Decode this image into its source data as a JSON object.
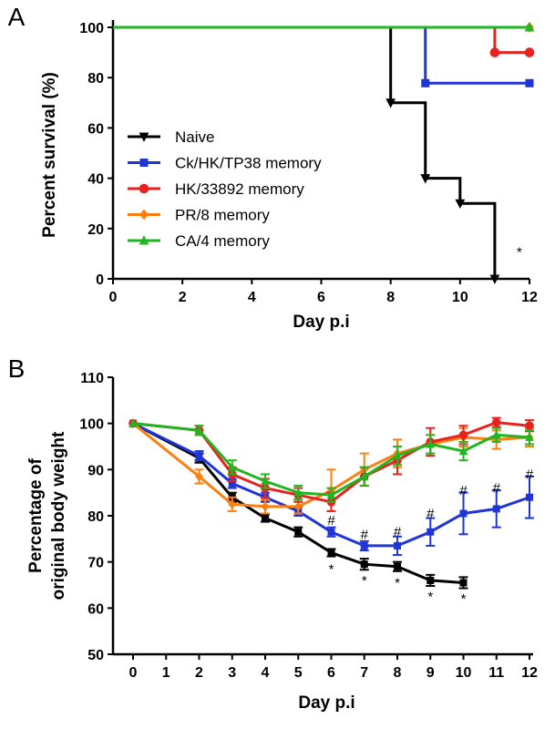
{
  "colors": {
    "naive": "#000000",
    "ck": "#1f35d6",
    "hk": "#e8221e",
    "pr": "#ff7f0e",
    "ca": "#22b522"
  },
  "chart_data": [
    {
      "type": "line",
      "panel_label": "A",
      "xlabel": "Day p.i",
      "ylabel": "Percent survival (%)",
      "xlim": [
        0,
        12
      ],
      "ylim": [
        0,
        100
      ],
      "x_ticks": [
        "0",
        "2",
        "4",
        "6",
        "8",
        "10",
        "12"
      ],
      "y_ticks": [
        "0",
        "20",
        "40",
        "60",
        "80",
        "100"
      ],
      "legend_position": "left",
      "step": true,
      "series": [
        {
          "name": "Naive",
          "key": "naive",
          "marker": "triangle-down",
          "x": [
            0,
            8,
            9,
            10,
            11
          ],
          "y": [
            100,
            70,
            40,
            30,
            0
          ]
        },
        {
          "name": "Ck/HK/TP38 memory",
          "key": "ck",
          "marker": "square",
          "x": [
            0,
            9,
            12
          ],
          "y": [
            100,
            77.8,
            77.8
          ]
        },
        {
          "name": "HK/33892 memory",
          "key": "hk",
          "marker": "circle",
          "x": [
            0,
            11,
            12
          ],
          "y": [
            100,
            90,
            90
          ]
        },
        {
          "name": "PR/8 memory",
          "key": "pr",
          "marker": "diamond",
          "x": [
            0,
            12
          ],
          "y": [
            100,
            100
          ]
        },
        {
          "name": "CA/4 memory",
          "key": "ca",
          "marker": "triangle-up",
          "x": [
            0,
            12
          ],
          "y": [
            100,
            100
          ]
        }
      ],
      "annotations": [
        {
          "text": "*",
          "x": 11.5,
          "y": 6
        }
      ]
    },
    {
      "type": "line",
      "panel_label": "B",
      "xlabel": "Day p.i",
      "ylabel_lines": [
        "Percentage of",
        "original body weight"
      ],
      "xlim": [
        0,
        12
      ],
      "ylim": [
        50,
        110
      ],
      "x_ticks": [
        "0",
        "1",
        "2",
        "3",
        "4",
        "5",
        "6",
        "7",
        "8",
        "9",
        "10",
        "11",
        "12"
      ],
      "y_ticks": [
        "50",
        "60",
        "70",
        "80",
        "90",
        "100",
        "110"
      ],
      "series": [
        {
          "name": "Naive",
          "key": "naive",
          "marker": "square",
          "x": [
            0,
            2,
            3,
            4,
            5,
            6,
            7,
            8,
            9,
            10
          ],
          "y": [
            100,
            92.5,
            84,
            79.5,
            76.5,
            72,
            69.5,
            69,
            66,
            65.5
          ],
          "err": [
            0,
            1,
            1,
            0.8,
            1,
            0.8,
            1.2,
            1,
            1.2,
            1.2
          ]
        },
        {
          "name": "Ck/HK/TP38 memory",
          "key": "ck",
          "marker": "square",
          "x": [
            0,
            2,
            3,
            4,
            5,
            6,
            7,
            8,
            9,
            10,
            11,
            12
          ],
          "y": [
            100,
            93,
            87,
            84,
            81,
            76.5,
            73.5,
            73.5,
            76.5,
            80.5,
            81.5,
            84
          ],
          "err": [
            0,
            1,
            1,
            1,
            1,
            1,
            1,
            2,
            3,
            4.5,
            4,
            4.5
          ]
        },
        {
          "name": "HK/33892 memory",
          "key": "hk",
          "marker": "circle",
          "x": [
            0,
            2,
            3,
            4,
            5,
            6,
            7,
            8,
            9,
            10,
            11,
            12
          ],
          "y": [
            100,
            98.5,
            89,
            86,
            84.5,
            83,
            88.5,
            92,
            96,
            97.5,
            100.2,
            99.5
          ],
          "err": [
            0,
            1,
            1.5,
            2,
            1.5,
            2,
            2,
            3,
            3,
            2,
            1,
            1.2
          ]
        },
        {
          "name": "PR/8 memory",
          "key": "pr",
          "marker": "diamond",
          "x": [
            0,
            2,
            3,
            4,
            5,
            6,
            7,
            8,
            9,
            10,
            11,
            12
          ],
          "y": [
            100,
            88.5,
            82.5,
            82,
            82,
            85.5,
            90,
            93.5,
            95.5,
            97,
            96.5,
            97
          ],
          "err": [
            0,
            1.5,
            1.5,
            1.5,
            1.5,
            4.5,
            3.5,
            3,
            2,
            2,
            2,
            2
          ]
        },
        {
          "name": "CA/4 memory",
          "key": "ca",
          "marker": "triangle-up",
          "x": [
            0,
            2,
            3,
            4,
            5,
            6,
            7,
            8,
            9,
            10,
            11,
            12
          ],
          "y": [
            100,
            98.5,
            90.5,
            87.5,
            85,
            84.5,
            88.5,
            93,
            95.5,
            94,
            97.5,
            97
          ],
          "err": [
            0,
            1,
            1.5,
            1.5,
            1.5,
            1.5,
            2,
            2,
            2,
            2,
            1.5,
            1.5
          ]
        }
      ],
      "annotations": [
        {
          "text": "#",
          "x": 6,
          "y": 79
        },
        {
          "text": "#",
          "x": 7,
          "y": 76
        },
        {
          "text": "#",
          "x": 8,
          "y": 76.5
        },
        {
          "text": "#",
          "x": 9,
          "y": 80.5
        },
        {
          "text": "#",
          "x": 10,
          "y": 85.5
        },
        {
          "text": "#",
          "x": 11,
          "y": 86
        },
        {
          "text": "#",
          "x": 12,
          "y": 89
        },
        {
          "text": "*",
          "x": 6,
          "y": 68.5
        },
        {
          "text": "*",
          "x": 7,
          "y": 66
        },
        {
          "text": "*",
          "x": 8,
          "y": 65.5
        },
        {
          "text": "*",
          "x": 9,
          "y": 62.5
        },
        {
          "text": "*",
          "x": 10,
          "y": 62
        }
      ]
    }
  ]
}
